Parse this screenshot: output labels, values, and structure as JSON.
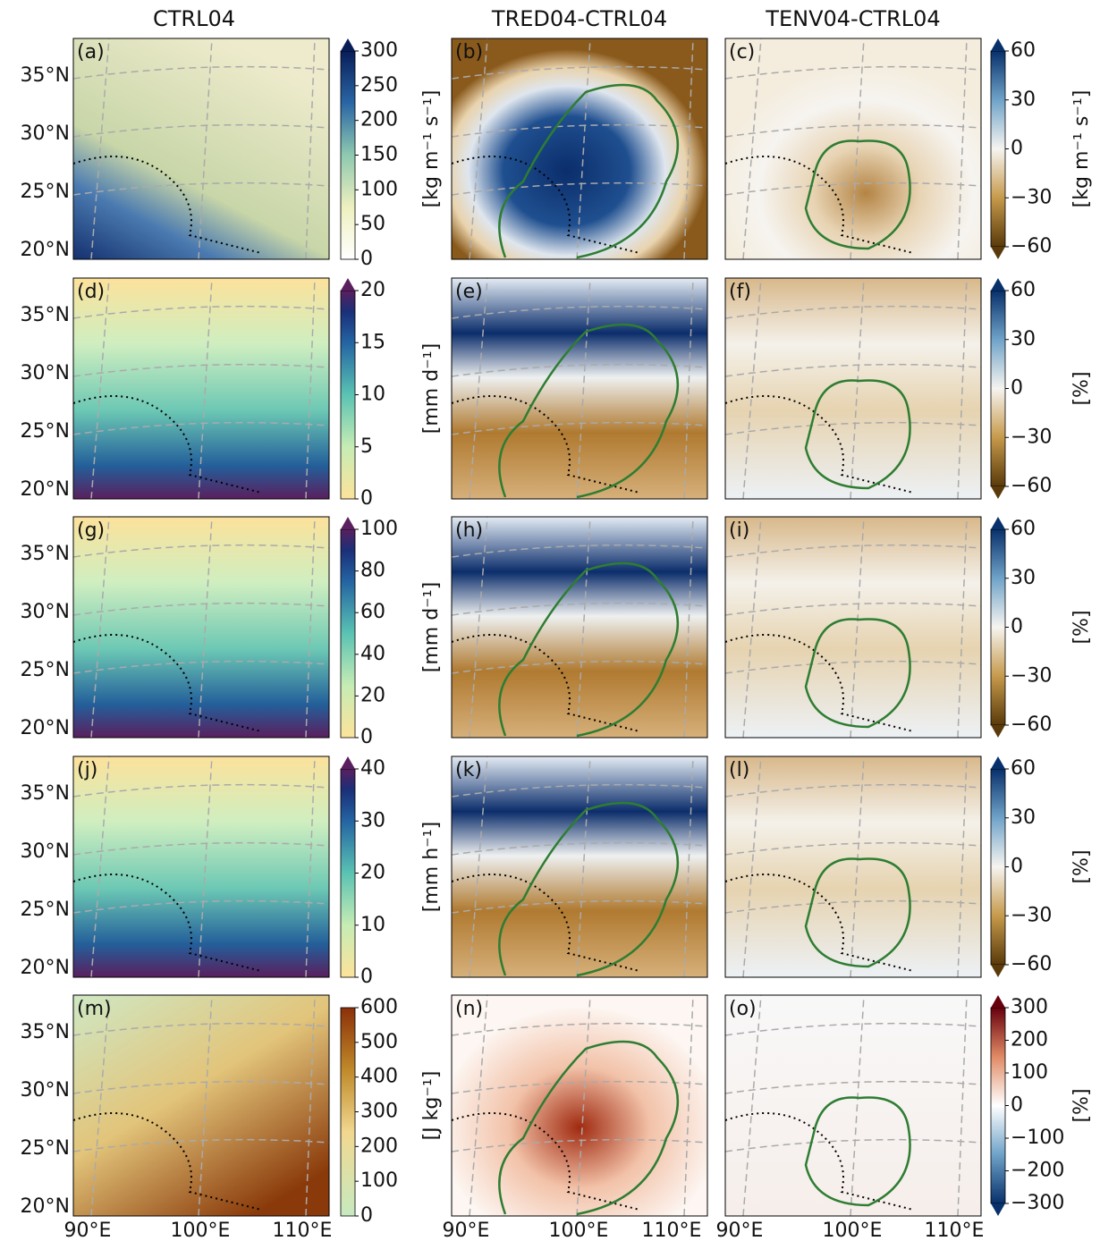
{
  "columns": [
    "CTRL04",
    "TRED04-CTRL04",
    "TENV04-CTRL04"
  ],
  "lat_ticks": [
    "35°N",
    "30°N",
    "25°N",
    "20°N"
  ],
  "lon_ticks": [
    "90°E",
    "100°E",
    "110°E"
  ],
  "rows": [
    {
      "panels": [
        "(a)",
        "(b)",
        "(c)"
      ],
      "unit": "[kg m⁻¹ s⁻¹]",
      "diff_unit": "[kg m⁻¹ s⁻¹]",
      "ticks": [
        "0",
        "50",
        "100",
        "150",
        "200",
        "250",
        "300"
      ],
      "diff_ticks": [
        "−60",
        "−30",
        "0",
        "30",
        "60"
      ]
    },
    {
      "panels": [
        "(d)",
        "(e)",
        "(f)"
      ],
      "unit": "[mm d⁻¹]",
      "diff_unit": "[%]",
      "ticks": [
        "0",
        "5",
        "10",
        "15",
        "20"
      ],
      "diff_ticks": [
        "−60",
        "−30",
        "0",
        "30",
        "60"
      ]
    },
    {
      "panels": [
        "(g)",
        "(h)",
        "(i)"
      ],
      "unit": "[mm d⁻¹]",
      "diff_unit": "[%]",
      "ticks": [
        "0",
        "20",
        "40",
        "60",
        "80",
        "100"
      ],
      "diff_ticks": [
        "−60",
        "−30",
        "0",
        "30",
        "60"
      ]
    },
    {
      "panels": [
        "(j)",
        "(k)",
        "(l)"
      ],
      "unit": "[mm h⁻¹]",
      "diff_unit": "[%]",
      "ticks": [
        "0",
        "10",
        "20",
        "30",
        "40"
      ],
      "diff_ticks": [
        "−60",
        "−30",
        "0",
        "30",
        "60"
      ]
    },
    {
      "panels": [
        "(m)",
        "(n)",
        "(o)"
      ],
      "unit": "[J kg⁻¹]",
      "diff_unit": "[%]",
      "ticks": [
        "0",
        "100",
        "200",
        "300",
        "400",
        "500",
        "600"
      ],
      "diff_ticks": [
        "−300",
        "−200",
        "−100",
        "0",
        "100",
        "200",
        "300"
      ]
    }
  ]
}
